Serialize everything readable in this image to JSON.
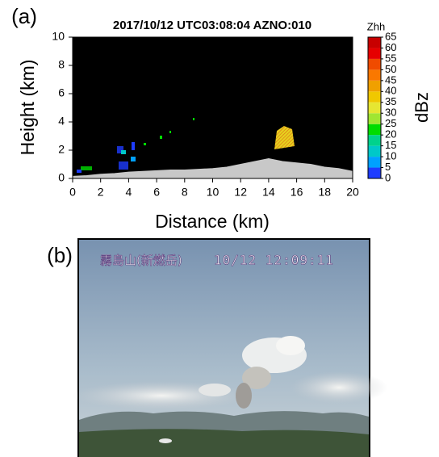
{
  "chart_data": {
    "type": "area",
    "panel_label": "(a)",
    "title": "2017/10/12 UTC03:08:04 AZNO:010",
    "x_label": "Distance (km)",
    "y_label": "Height (km)",
    "x": [
      0,
      1,
      2,
      3,
      4,
      5,
      6,
      7,
      8,
      9,
      10,
      11,
      12,
      13,
      14,
      15,
      16,
      17,
      18,
      19,
      20
    ],
    "series": [
      {
        "color": "#c8c8c8",
        "values": [
          0.15,
          0.2,
          0.3,
          0.35,
          0.45,
          0.5,
          0.55,
          0.6,
          0.6,
          0.65,
          0.7,
          0.8,
          1.0,
          1.2,
          1.4,
          1.2,
          1.1,
          1.0,
          0.8,
          0.7,
          0.5
        ]
      }
    ],
    "xlim": [
      0,
      20
    ],
    "ylim": [
      0,
      10
    ],
    "xticks": [
      0,
      2,
      4,
      6,
      8,
      10,
      12,
      14,
      16,
      18,
      20
    ],
    "yticks": [
      0,
      2,
      4,
      6,
      8,
      10
    ],
    "background": "#000000",
    "colorbar": {
      "label": "Zhh",
      "unit": "dBz",
      "lim": [
        0,
        65
      ],
      "ticks": [
        0,
        5,
        10,
        15,
        20,
        25,
        30,
        35,
        40,
        45,
        50,
        55,
        60,
        65
      ],
      "colors": [
        "#1e3cff",
        "#00a0ff",
        "#00c8c8",
        "#00d28c",
        "#00dc00",
        "#a0e632",
        "#e6e632",
        "#f0c800",
        "#f0a000",
        "#fa7800",
        "#f04b00",
        "#e60000",
        "#c80000"
      ]
    }
  },
  "photo": {
    "panel_label": "(b)",
    "place": "霧島山(新燃岳)",
    "timestamp": "10/12 12:09:11"
  }
}
